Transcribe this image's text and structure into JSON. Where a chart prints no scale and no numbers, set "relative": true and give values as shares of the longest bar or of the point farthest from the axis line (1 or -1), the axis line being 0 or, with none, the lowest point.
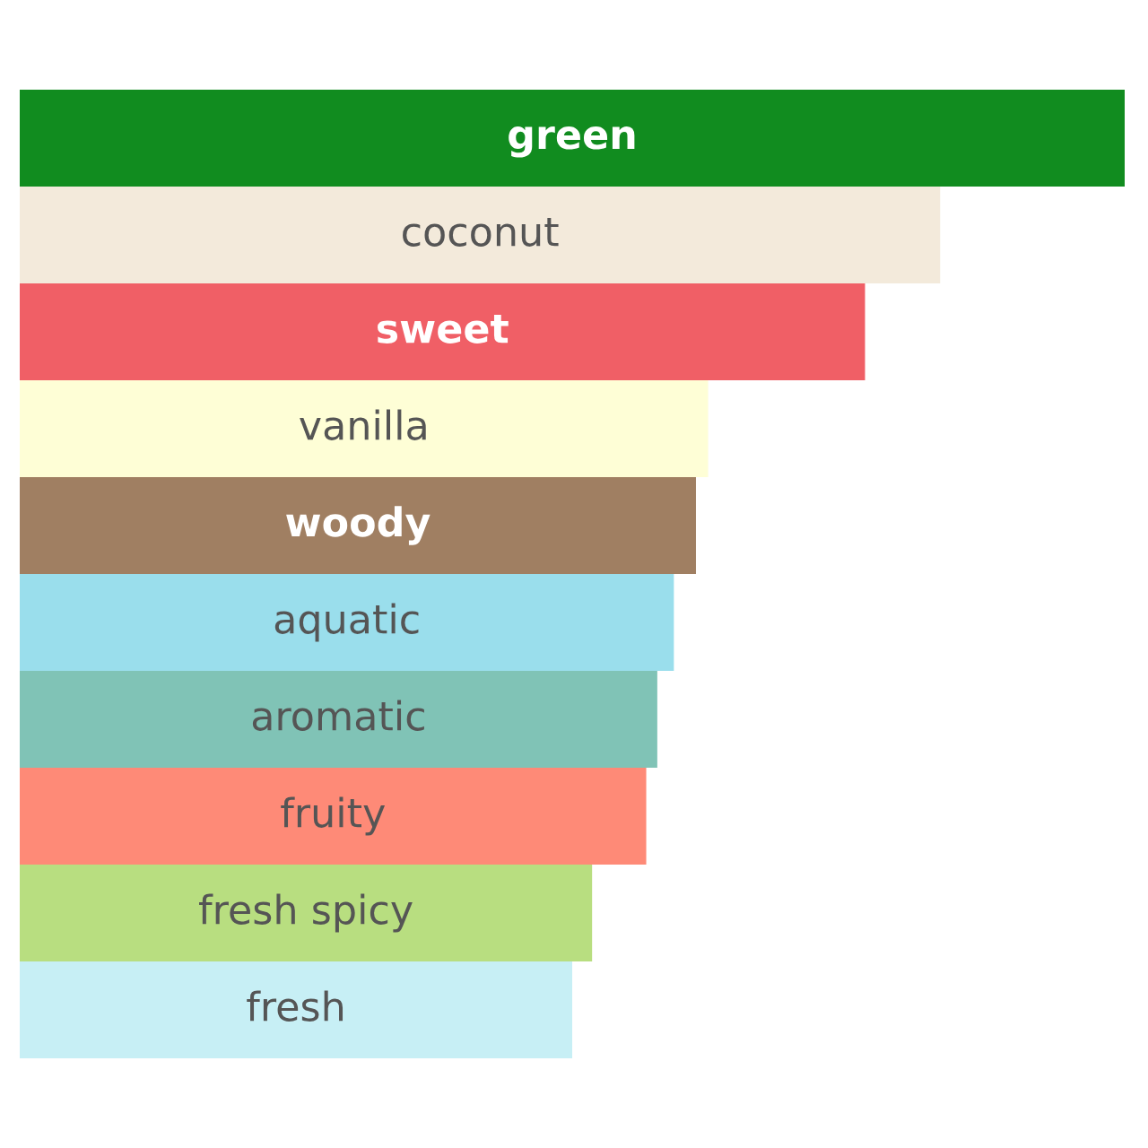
{
  "chart_data": {
    "type": "bar",
    "orientation": "horizontal",
    "relative": true,
    "tick_labels": false,
    "categories": [
      "green",
      "coconut",
      "sweet",
      "vanilla",
      "woody",
      "aquatic",
      "aromatic",
      "fruity",
      "fresh spicy",
      "fresh"
    ],
    "values": [
      1,
      0.833,
      0.765,
      0.623,
      0.612,
      0.592,
      0.577,
      0.567,
      0.518,
      0.5
    ],
    "colors": [
      "#118c1f",
      "#f3eadb",
      "#f05f66",
      "#fefed6",
      "#a07f62",
      "#9adeec",
      "#80c3b6",
      "#fe8a77",
      "#b8de80",
      "#c7eff5"
    ]
  }
}
